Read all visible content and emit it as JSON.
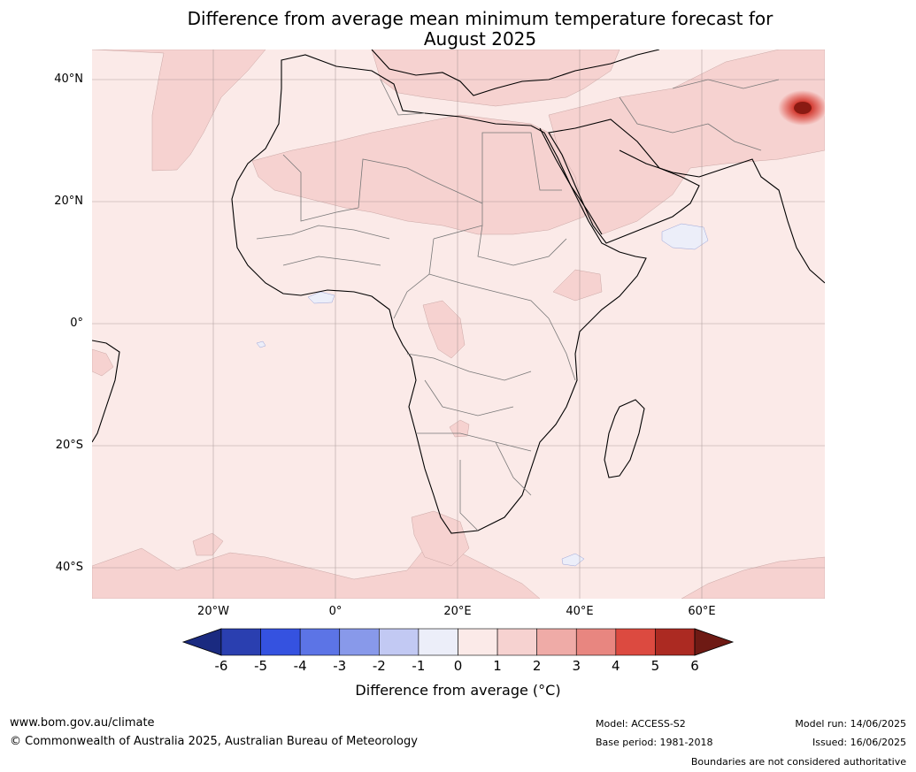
{
  "title_line1": "Difference from average mean minimum temperature forecast for",
  "title_line2": "August 2025",
  "lat_labels": [
    "40°N",
    "20°N",
    "0°",
    "20°S",
    "40°S"
  ],
  "lon_labels": [
    "20°W",
    "0°",
    "20°E",
    "40°E",
    "60°E"
  ],
  "colorbar": {
    "ticks": [
      "-6",
      "-5",
      "-4",
      "-3",
      "-2",
      "-1",
      "0",
      "1",
      "2",
      "3",
      "4",
      "5",
      "6"
    ],
    "colors": [
      "#1a2a80",
      "#2a3fb0",
      "#3552e0",
      "#5c74e6",
      "#8899ea",
      "#c2c9f3",
      "#eceef9",
      "#fbeae8",
      "#f6d2d0",
      "#efaba7",
      "#e88680",
      "#dc4a40",
      "#ac2a22",
      "#6e1a14"
    ],
    "label": "Difference from average (°C)"
  },
  "footer": {
    "site": "www.bom.gov.au/climate",
    "copyright": "© Commonwealth of Australia 2025, Australian Bureau of Meteorology",
    "model": "Model: ACCESS-S2",
    "base_period": "Base period: 1981-2018",
    "model_run": "Model run: 14/06/2025",
    "issued": "Issued: 16/06/2025",
    "disclaimer": "Boundaries are not considered authoritative"
  }
}
